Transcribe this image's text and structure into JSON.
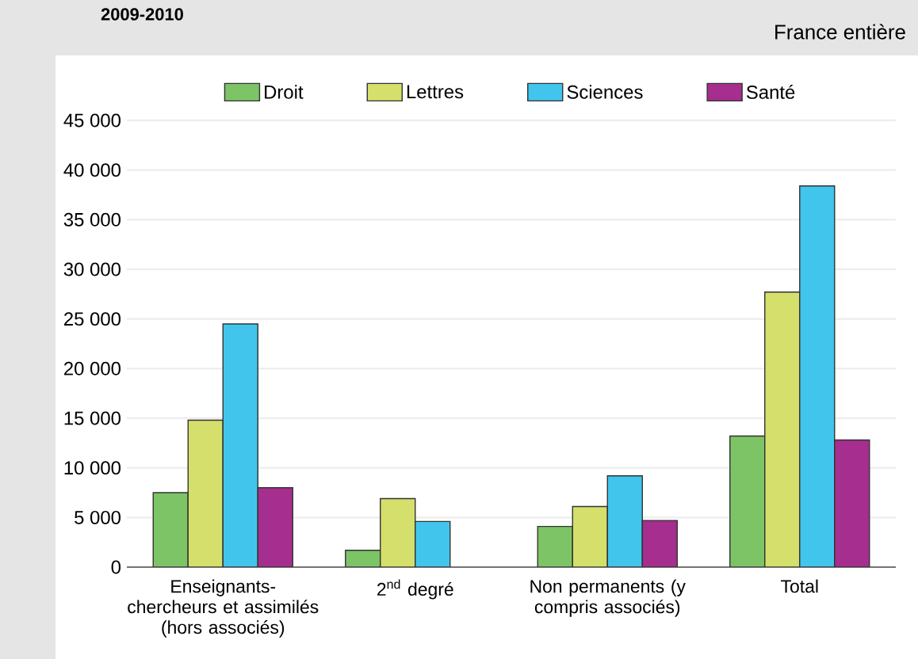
{
  "chart_data": {
    "type": "bar",
    "subtitle": "2009-2010",
    "annotations": [
      "France entière"
    ],
    "categories": [
      "Enseignants-chercheurs et assimilés (hors associés)",
      "2$^{nd}$ degré",
      "Non permanents (y compris associés)",
      "Total"
    ],
    "series": [
      {
        "name": "Droit",
        "color": "#7dc466",
        "values": [
          7500,
          1700,
          4100,
          13200
        ]
      },
      {
        "name": "Lettres",
        "color": "#d4e06b",
        "values": [
          14800,
          6900,
          6100,
          27700
        ]
      },
      {
        "name": "Sciences",
        "color": "#42c5ec",
        "values": [
          24500,
          4600,
          9200,
          38400
        ]
      },
      {
        "name": "Santé",
        "color": "#a52e8e",
        "values": [
          8000,
          null,
          4700,
          12800
        ]
      }
    ],
    "ylim": [
      0,
      45000
    ],
    "yticks": [
      0,
      {
        "value": 5000,
        "label": "5 000"
      },
      {
        "value": 10000,
        "label": "10 000"
      },
      {
        "value": 15000,
        "label": "15 000"
      },
      {
        "value": 20000,
        "label": "20 000"
      },
      {
        "value": 25000,
        "label": "25 000"
      },
      {
        "value": 30000,
        "label": "30 000"
      },
      {
        "value": 35000,
        "label": "35 000"
      },
      {
        "value": 40000,
        "label": "40 000"
      },
      {
        "value": 45000,
        "label": "45 000"
      }
    ],
    "grid": "y",
    "legend": "top"
  }
}
